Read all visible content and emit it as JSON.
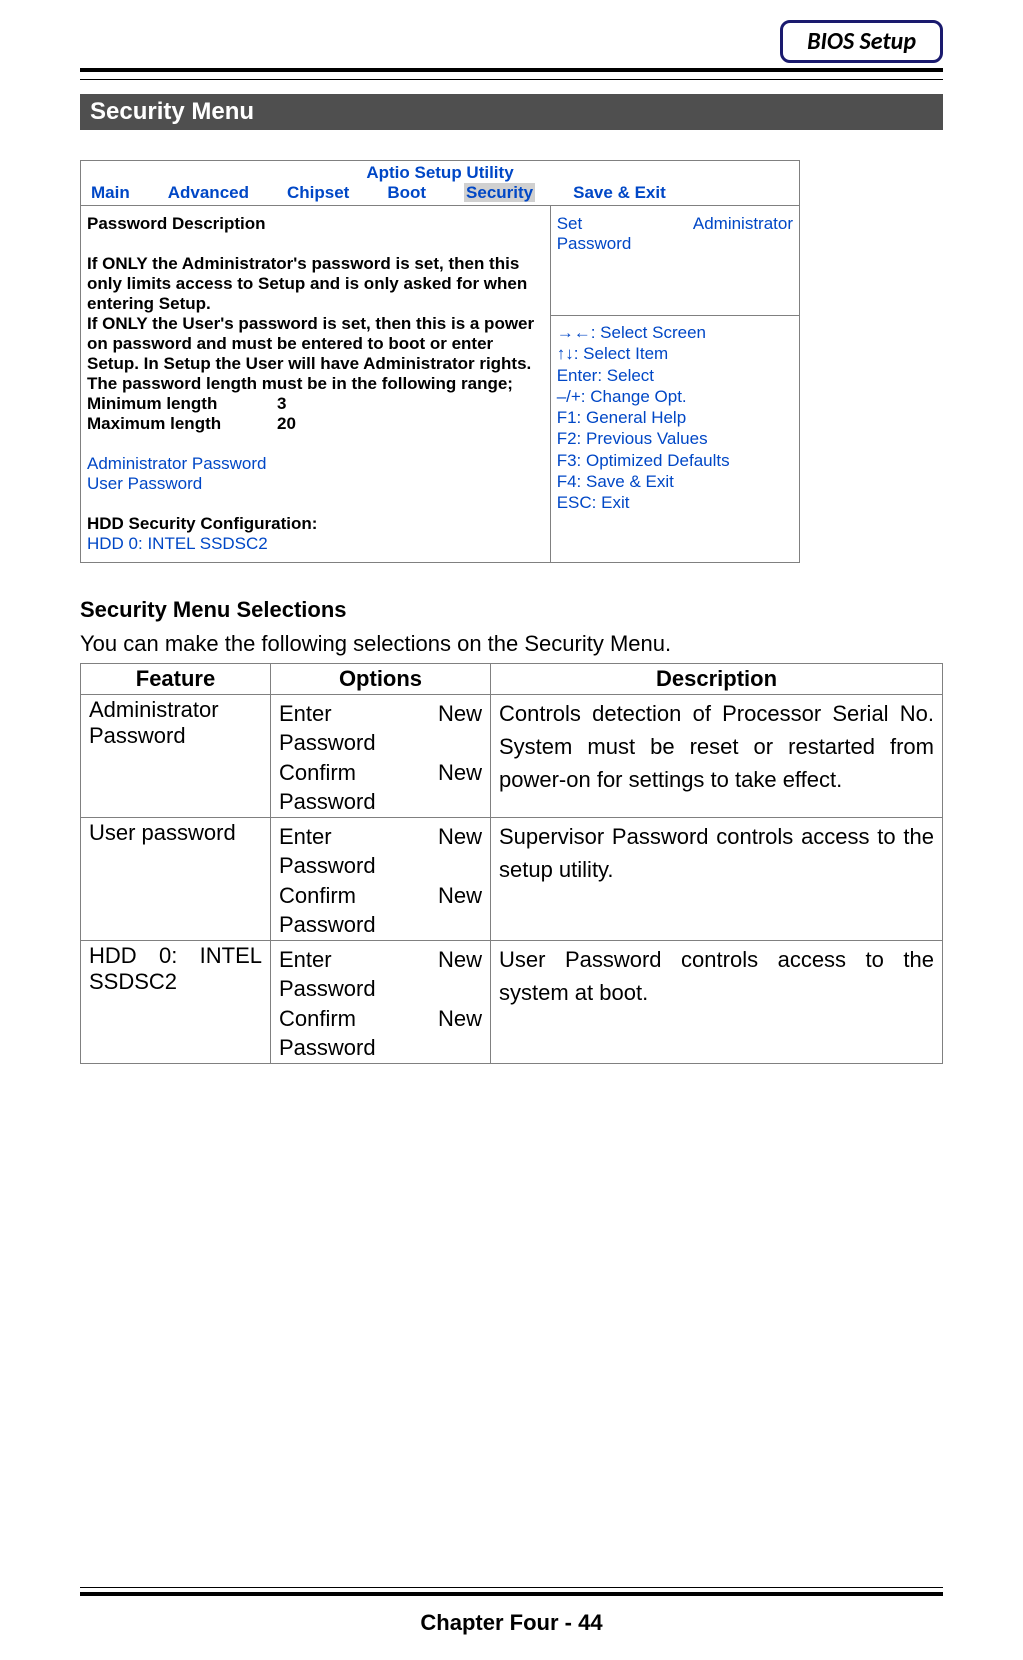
{
  "badge": "BIOS Setup",
  "section_title": "Security Menu",
  "bios": {
    "utility_title": "Aptio Setup Utility",
    "tabs": {
      "main": "Main",
      "advanced": "Advanced",
      "chipset": "Chipset",
      "boot": "Boot",
      "security": "Security",
      "save_exit": "Save & Exit"
    },
    "left": {
      "heading": "Password Description",
      "para1": "If ONLY the Administrator's password is set, then this only limits access to Setup and is only asked for when entering Setup.",
      "para2": "If ONLY the User's password is set, then this is a power on password and must be entered to boot or enter Setup. In Setup the User will have Administrator rights.",
      "range_line": "The password length must be in the following range;",
      "min_label": "Minimum length",
      "min_value": "3",
      "max_label": "Maximum length",
      "max_value": "20",
      "admin_pw": "Administrator Password",
      "user_pw": "User Password",
      "hdd_heading": "HDD Security Configuration:",
      "hdd_item": "HDD 0: INTEL SSDSC2"
    },
    "right_top": {
      "word1": "Set",
      "word2": "Administrator",
      "word3": "Password"
    },
    "help": {
      "l1": "→←: Select Screen",
      "l2": "↑↓: Select Item",
      "l3": "Enter: Select",
      "l4": "–/+: Change Opt.",
      "l5": "F1: General Help",
      "l6": "F2: Previous Values",
      "l7": "F3: Optimized Defaults",
      "l8": "F4: Save & Exit",
      "l9": "ESC: Exit"
    }
  },
  "selections": {
    "heading": "Security Menu Selections",
    "intro": "You can make the following selections on the Security Menu.",
    "columns": {
      "feature": "Feature",
      "options": "Options",
      "description": "Description"
    },
    "opt_enter_a": "Enter",
    "opt_enter_b": "New",
    "opt_password": "Password",
    "opt_confirm_a": "Confirm",
    "opt_confirm_b": "New",
    "rows": {
      "r1": {
        "feature": "Administrator Password",
        "desc": "Controls detection of Processor Serial No. System must be reset or restarted from power-on for settings to take effect."
      },
      "r2": {
        "feature": "User password",
        "desc": "Supervisor Password controls access to the setup utility."
      },
      "r3": {
        "feature": "HDD 0: INTEL SSDSC2",
        "desc": "User Password controls access to the system at boot."
      }
    }
  },
  "footer": "Chapter Four - 44",
  "colors": {
    "badge_border": "#1a1a6e",
    "section_bg": "#4f4f4f",
    "bios_blue": "#0047c6",
    "border_gray": "#808080",
    "highlight_gray": "#d0d0d0"
  }
}
